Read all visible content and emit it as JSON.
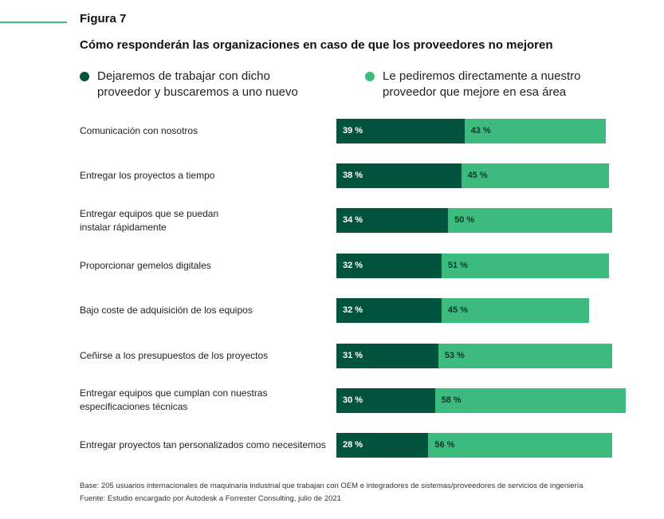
{
  "figure": {
    "label": "Figura 7",
    "title": "Cómo responderán las organizaciones en caso de que los proveedores no mejoren"
  },
  "colors": {
    "accent": "#3dba7e",
    "dark_series": "#03543f",
    "light_series": "#3dba7e"
  },
  "legend": [
    {
      "line1": "Dejaremos de trabajar con dicho",
      "line2": "proveedor y buscaremos a uno nuevo",
      "color": "#03543f"
    },
    {
      "line1": "Le pediremos directamente a nuestro",
      "line2": "proveedor que mejore en esa área",
      "color": "#3dba7e"
    }
  ],
  "chart_data": {
    "type": "bar",
    "orientation": "horizontal",
    "stacked": true,
    "title": "Cómo responderán las organizaciones en caso de que los proveedores no mejoren",
    "categories": [
      [
        "Comunicación con nosotros"
      ],
      [
        "Entregar los proyectos a tiempo"
      ],
      [
        "Entregar equipos que se puedan",
        "instalar rápidamente"
      ],
      [
        "Proporcionar gemelos digitales"
      ],
      [
        "Bajo coste de adquisición de los equipos"
      ],
      [
        "Ceñirse a los presupuestos de los proyectos"
      ],
      [
        "Entregar equipos que cumplan con nuestras",
        "especificaciones técnicas"
      ],
      [
        "Entregar proyectos tan personalizados como necesitemos"
      ]
    ],
    "series": [
      {
        "name": "Dejaremos de trabajar con dicho proveedor y buscaremos a uno nuevo",
        "values": [
          39,
          38,
          34,
          32,
          32,
          31,
          30,
          28
        ],
        "labels": [
          "39 %",
          "38 %",
          "34 %",
          "32 %",
          "32 %",
          "31 %",
          "30 %",
          "28 %"
        ]
      },
      {
        "name": "Le pediremos directamente a nuestro proveedor que mejore en esa área",
        "values": [
          43,
          45,
          50,
          51,
          45,
          53,
          58,
          56
        ],
        "labels": [
          "43 %",
          "45 %",
          "50 %",
          "51 %",
          "45 %",
          "53 %",
          "58 %",
          "56 %"
        ]
      }
    ],
    "unit": "%",
    "legend_position": "top",
    "grid": false
  },
  "footnotes": {
    "base": "Base: 205 usuarios internacionales de maquinaria industrial que trabajan con OEM e integradores de sistemas/proveedores de servicios de ingeniería",
    "source": "Fuente: Estudio encargado por Autodesk a Forrester Consulting, julio de 2021"
  }
}
